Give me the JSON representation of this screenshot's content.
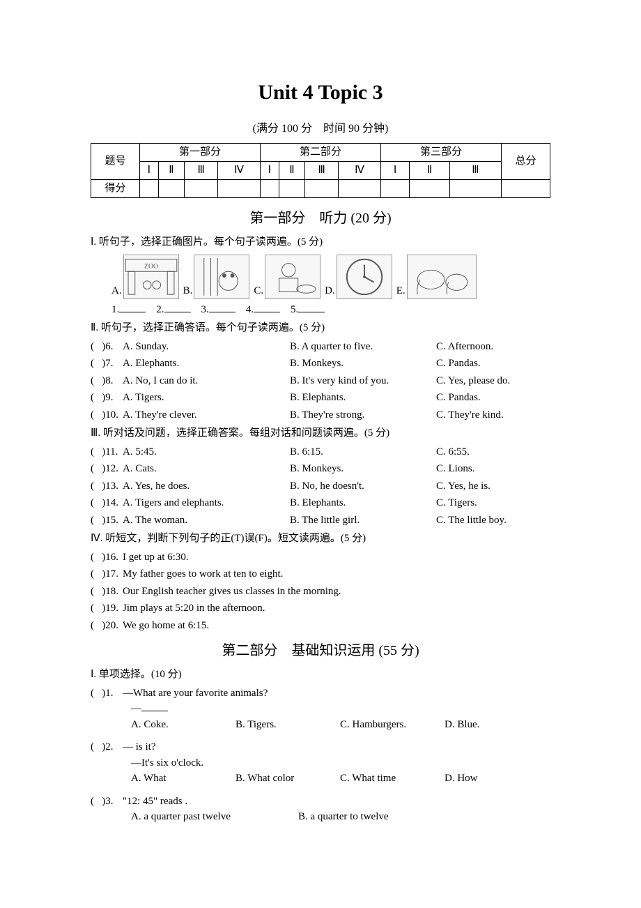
{
  "title": "Unit 4 Topic 3",
  "subtitle_full": "(满分 100 分　时间 90 分钟)",
  "score_table": {
    "row_label": "题号",
    "part1": "第一部分",
    "part2": "第二部分",
    "part3": "第三部分",
    "total": "总分",
    "r1": "Ⅰ",
    "r2": "Ⅱ",
    "r3": "Ⅲ",
    "r4": "Ⅳ",
    "score_label": "得分"
  },
  "section1": {
    "header": "第一部分　听力 (20 分)",
    "p1_instr": "Ⅰ. 听句子，选择正确图片。每个句子读两遍。(5 分)",
    "img_labels": {
      "A": "A.",
      "B": "B.",
      "C": "C.",
      "D": "D.",
      "E": "E."
    },
    "img_desc": {
      "A": "zoo",
      "B": "pandas",
      "C": "eating",
      "D": "clock",
      "E": "elephants"
    },
    "fill_labels": {
      "n1": "1.",
      "n2": "2.",
      "n3": "3.",
      "n4": "4.",
      "n5": "5."
    },
    "p2_instr": "Ⅱ. 听句子，选择正确答语。每个句子读两遍。(5 分)",
    "p2_q": [
      {
        "n": ")6.",
        "a": "A. Sunday.",
        "b": "B. A quarter to five.",
        "c": "C. Afternoon."
      },
      {
        "n": ")7.",
        "a": "A. Elephants.",
        "b": "B. Monkeys.",
        "c": "C. Pandas."
      },
      {
        "n": ")8.",
        "a": "A. No, I can do it.",
        "b": "B. It's very kind of you.",
        "c": "C. Yes, please do."
      },
      {
        "n": ")9.",
        "a": "A. Tigers.",
        "b": "B. Elephants.",
        "c": "C. Pandas."
      },
      {
        "n": ")10.",
        "a": "A. They're clever.",
        "b": "B. They're strong.",
        "c": "C. They're kind."
      }
    ],
    "p3_instr": "Ⅲ. 听对话及问题，选择正确答案。每组对话和问题读两遍。(5 分)",
    "p3_q": [
      {
        "n": ")11.",
        "a": "A. 5:45.",
        "b": "B. 6:15.",
        "c": "C. 6:55."
      },
      {
        "n": ")12.",
        "a": "A. Cats.",
        "b": "B. Monkeys.",
        "c": "C. Lions."
      },
      {
        "n": ")13.",
        "a": "A. Yes, he does.",
        "b": "B. No, he doesn't.",
        "c": "C. Yes, he is."
      },
      {
        "n": ")14.",
        "a": "A. Tigers and elephants.",
        "b": "B. Elephants.",
        "c": "C. Tigers."
      },
      {
        "n": ")15.",
        "a": "A. The woman.",
        "b": "B. The little girl.",
        "c": "C. The little boy."
      }
    ],
    "p4_instr": "Ⅳ. 听短文，判断下列句子的正(T)误(F)。短文读两遍。(5 分)",
    "p4_q": [
      {
        "n": ")16.",
        "t": "I get up at 6:30."
      },
      {
        "n": ")17.",
        "t": "My father goes to work at ten to eight."
      },
      {
        "n": ")18.",
        "t": "Our English teacher gives us classes in the morning."
      },
      {
        "n": ")19.",
        "t": "Jim plays at 5:20 in the afternoon."
      },
      {
        "n": ")20.",
        "t": "We go home at 6:15."
      }
    ]
  },
  "section2": {
    "header": "第二部分　基础知识运用 (55 分)",
    "p1_instr": "Ⅰ. 单项选择。(10 分)",
    "q1": {
      "n": ")1.",
      "line1": "—What are your favorite animals?",
      "line2": "—",
      "a": "A. Coke.",
      "b": "B. Tigers.",
      "c": "C. Hamburgers.",
      "d": "D. Blue."
    },
    "q2": {
      "n": ")2.",
      "prefix": "—",
      "suffix": " is it?",
      "line2": "—It's six o'clock.",
      "a": "A. What",
      "b": "B. What color",
      "c": "C. What time",
      "d": "D. How"
    },
    "q3": {
      "n": ")3.",
      "prefix": "\"12: 45\" reads ",
      "suffix": ".",
      "a": "A. a quarter past twelve",
      "b": "B. a quarter to twelve"
    }
  },
  "paren": "("
}
